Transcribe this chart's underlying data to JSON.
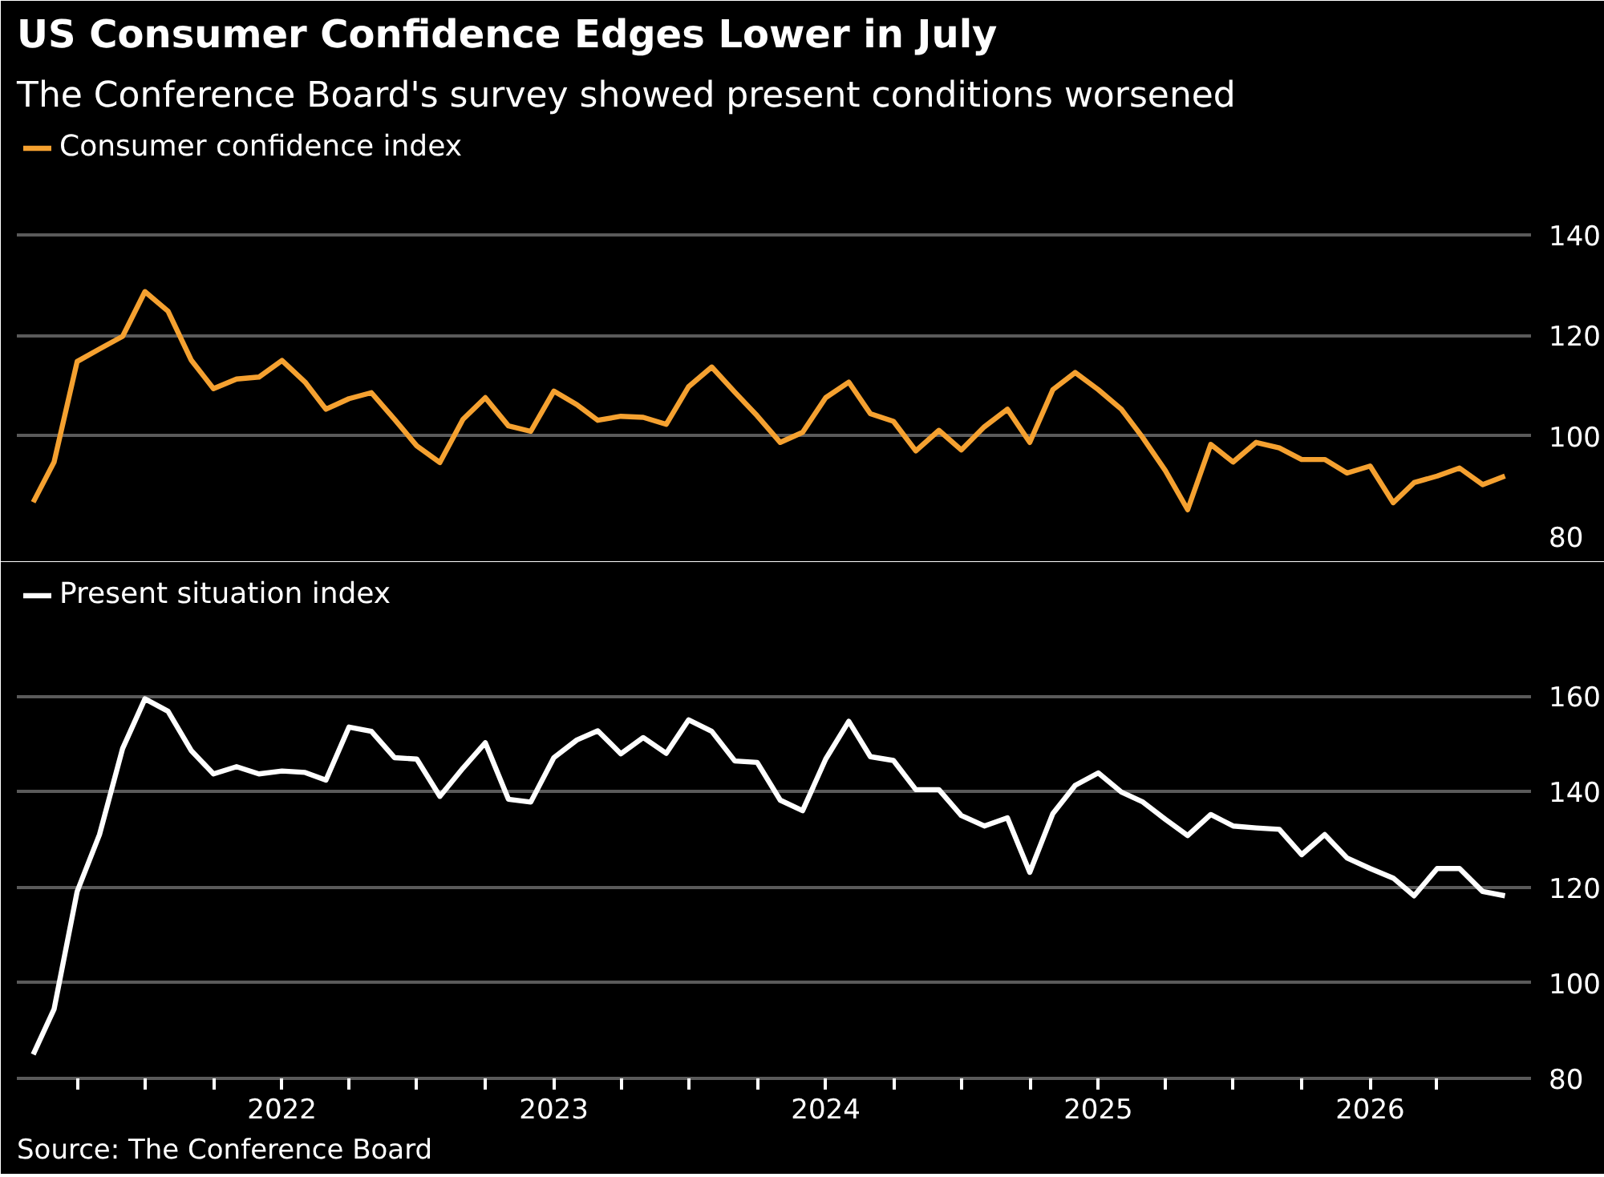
{
  "chart_data": [
    {
      "type": "line",
      "title": "US Consumer Confidence Edges Lower in July",
      "subtitle": "The Conference Board's survey showed present conditions worsened",
      "x": [
        "2021-02",
        "2021-03",
        "2021-04",
        "2021-05",
        "2021-06",
        "2021-07",
        "2021-08",
        "2021-09",
        "2021-10",
        "2021-11",
        "2021-12",
        "2022-01",
        "2022-02",
        "2022-03",
        "2022-04",
        "2022-05",
        "2022-06",
        "2022-07",
        "2022-08",
        "2022-09",
        "2022-10",
        "2022-11",
        "2022-12",
        "2023-01",
        "2023-02",
        "2023-03",
        "2023-04",
        "2023-05",
        "2023-06",
        "2023-07",
        "2023-08",
        "2023-09",
        "2023-10",
        "2023-11",
        "2023-12",
        "2024-01",
        "2024-02",
        "2024-03",
        "2024-04",
        "2024-05",
        "2024-06",
        "2024-07",
        "2024-08",
        "2024-09",
        "2024-10",
        "2024-11",
        "2024-12",
        "2025-01",
        "2025-02",
        "2025-03",
        "2025-04",
        "2025-05",
        "2025-06",
        "2025-07",
        "2025-08",
        "2025-09",
        "2025-10",
        "2025-11",
        "2025-12",
        "2026-01",
        "2026-02",
        "2026-03",
        "2026-04",
        "2026-05",
        "2026-06",
        "2026-07"
      ],
      "series": [
        {
          "name": "Consumer confidence index",
          "color": "#f5a130",
          "values": [
            86.8,
            94.8,
            114.8,
            117.3,
            119.8,
            128.7,
            124.8,
            115.1,
            109.4,
            111.3,
            111.7,
            115,
            110.7,
            105.3,
            107.4,
            108.6,
            103.3,
            98,
            94.7,
            103.3,
            107.6,
            102,
            100.9,
            108.9,
            106.2,
            103.1,
            103.9,
            103.7,
            102.3,
            109.8,
            113.7,
            108.7,
            104,
            98.7,
            100.7,
            107.6,
            110.7,
            104.4,
            102.9,
            97,
            101.1,
            97.2,
            101.8,
            105.3,
            98.7,
            109.2,
            112.6,
            109.2,
            105.3,
            99.8,
            93.1,
            85.3,
            98.3,
            94.8,
            98.7,
            97.6,
            95.3,
            95.3,
            92.6,
            94,
            86.7,
            90.7,
            92,
            93.6,
            90.3,
            92
          ]
        }
      ],
      "xlim": [
        "2021-01-10",
        "2026-08-05"
      ],
      "ylim": [
        80,
        162
      ],
      "yticks": [
        80,
        100,
        120,
        140
      ],
      "grid": "y",
      "legend": "top left",
      "tick_labels": "y",
      "line_style": "solid"
    },
    {
      "type": "line",
      "annotations": [
        "Source: The Conference Board"
      ],
      "x": [
        "2021-02",
        "2021-03",
        "2021-04",
        "2021-05",
        "2021-06",
        "2021-07",
        "2021-08",
        "2021-09",
        "2021-10",
        "2021-11",
        "2021-12",
        "2022-01",
        "2022-02",
        "2022-03",
        "2022-04",
        "2022-05",
        "2022-06",
        "2022-07",
        "2022-08",
        "2022-09",
        "2022-10",
        "2022-11",
        "2022-12",
        "2023-01",
        "2023-02",
        "2023-03",
        "2023-04",
        "2023-05",
        "2023-06",
        "2023-07",
        "2023-08",
        "2023-09",
        "2023-10",
        "2023-11",
        "2023-12",
        "2024-01",
        "2024-02",
        "2024-03",
        "2024-04",
        "2024-05",
        "2024-06",
        "2024-07",
        "2024-08",
        "2024-09",
        "2024-10",
        "2024-11",
        "2024-12",
        "2025-01",
        "2025-02",
        "2025-03",
        "2025-04",
        "2025-05",
        "2025-06",
        "2025-07",
        "2025-08",
        "2025-09",
        "2025-10",
        "2025-11",
        "2025-12",
        "2026-01",
        "2026-02",
        "2026-03",
        "2026-04",
        "2026-05",
        "2026-06",
        "2026-07"
      ],
      "series": [
        {
          "name": "Present situation index",
          "color": "#ffffff",
          "values": [
            85,
            94.5,
            119.1,
            131,
            149,
            159.4,
            156.8,
            148.6,
            143.7,
            145.2,
            143.7,
            144.3,
            144,
            142.4,
            153.5,
            152.6,
            147.1,
            146.8,
            139,
            144.9,
            150.2,
            138.4,
            137.8,
            147.1,
            150.8,
            152.7,
            147.9,
            151.3,
            148,
            155,
            152.6,
            146.4,
            146.1,
            138.2,
            136,
            146.8,
            154.7,
            147.3,
            146.5,
            140.4,
            140.4,
            135,
            132.8,
            134.5,
            123.1,
            135.4,
            141.3,
            143.9,
            139.9,
            137.9,
            134.2,
            130.8,
            135.2,
            132.8,
            132.4,
            132.1,
            126.8,
            131,
            126.1,
            123.9,
            121.9,
            118.2,
            123.9,
            123.9,
            119.1,
            118.2
          ]
        }
      ],
      "xlim": [
        "2021-01-10",
        "2026-08-05"
      ],
      "ylim": [
        80,
        186
      ],
      "yticks": [
        80,
        100,
        120,
        140,
        160
      ],
      "xticks": [
        {
          "value": "2021-04",
          "label": null
        },
        {
          "value": "2021-07",
          "label": null
        },
        {
          "value": "2021-10",
          "label": null
        },
        {
          "value": "2022-01",
          "label": "2022"
        },
        {
          "value": "2022-04",
          "label": null
        },
        {
          "value": "2022-07",
          "label": null
        },
        {
          "value": "2022-10",
          "label": null
        },
        {
          "value": "2023-01",
          "label": "2023"
        },
        {
          "value": "2023-04",
          "label": null
        },
        {
          "value": "2023-07",
          "label": null
        },
        {
          "value": "2023-10",
          "label": null
        },
        {
          "value": "2024-01",
          "label": "2024"
        },
        {
          "value": "2024-04",
          "label": null
        },
        {
          "value": "2024-07",
          "label": null
        },
        {
          "value": "2024-10",
          "label": null
        },
        {
          "value": "2025-01",
          "label": "2025"
        },
        {
          "value": "2025-04",
          "label": null
        },
        {
          "value": "2025-07",
          "label": null
        },
        {
          "value": "2025-10",
          "label": null
        },
        {
          "value": "2026-01",
          "label": "2026"
        },
        {
          "value": "2026-04",
          "label": null
        }
      ],
      "grid": "y",
      "legend": "top left",
      "line_style": "solid"
    }
  ]
}
